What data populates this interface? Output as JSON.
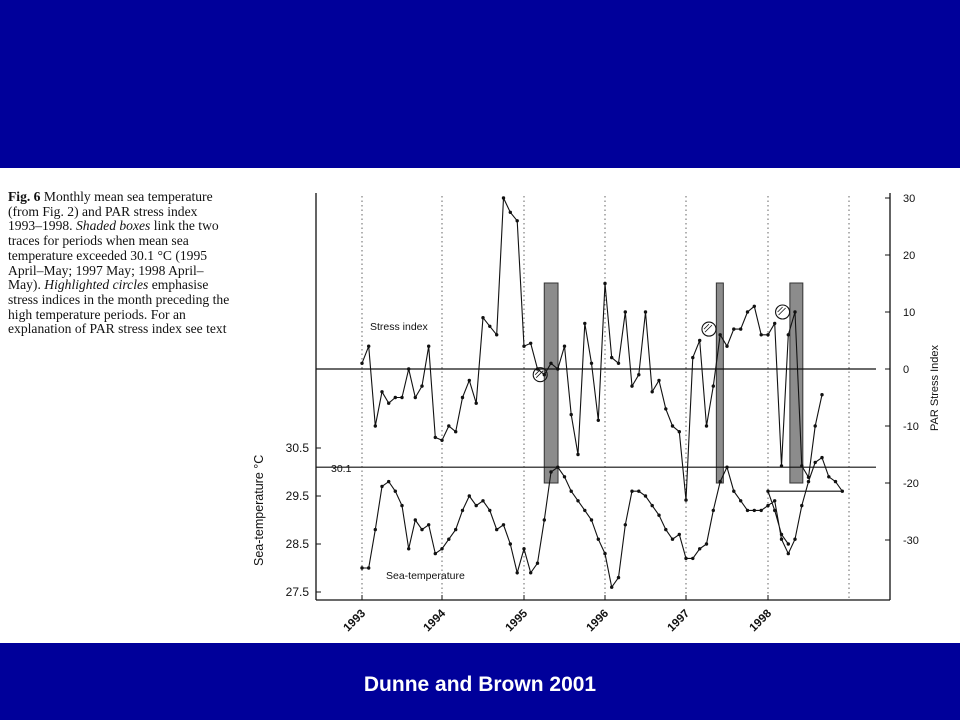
{
  "caption": {
    "fig_label": "Fig. 6",
    "part1": " Monthly mean sea temperature (from Fig. 2) and PAR stress index 1993–1998. ",
    "shaded_boxes": "Shaded boxes",
    "part2": " link the two traces for periods when mean sea temperature exceeded 30.1 °C (1995 April–May; 1997 May; 1998 April–May). ",
    "highlighted_circles": "Highlighted circles",
    "part3": " emphasise stress indices in the month preceding the high temperature periods. For an explanation of PAR stress index see text"
  },
  "credit": "Dunne and Brown 2001",
  "colors": {
    "band": "#00009a",
    "panel": "#ffffff",
    "ink": "#111111",
    "box_fill": "#8c8c8c"
  },
  "chart_data": {
    "type": "line",
    "x_tick_labels": [
      "1993",
      "1994",
      "1995",
      "1996",
      "1997",
      "1998"
    ],
    "left_axis": {
      "label": "Sea-temperature  °C",
      "ylim": [
        27.5,
        31.4
      ],
      "ticks": [
        27.5,
        28.5,
        29.5,
        30.5
      ],
      "tick_labels": [
        "27.5",
        "28.5",
        "29.5",
        "30.5"
      ]
    },
    "right_axis": {
      "label": "PAR Stress Index",
      "ylim": [
        -40,
        30
      ],
      "ticks": [
        -30,
        -20,
        -10,
        0,
        10,
        20,
        30
      ],
      "tick_labels": [
        "-30",
        "-20",
        "-10",
        "0",
        "10",
        "20",
        "30"
      ]
    },
    "threshold": {
      "value": 30.1,
      "label": "30.1"
    },
    "stress_zero_line": 0,
    "grid": "vertical dotted lines at year starts",
    "x_start_year": 1993,
    "series": [
      {
        "name": "Stress index",
        "axis": "right",
        "values": [
          1,
          4,
          -10,
          -4,
          -6,
          -5,
          -5,
          0,
          -5,
          -3,
          4,
          -12,
          -12.5,
          -10,
          -11,
          -5,
          -2,
          -6,
          9,
          7.5,
          6,
          30,
          27.5,
          26,
          4,
          4.5,
          0,
          -1,
          1,
          0,
          4,
          -8,
          -15,
          8,
          1,
          -9,
          15,
          2,
          1,
          10,
          -3,
          -1,
          10,
          -4,
          -2,
          -7,
          -10,
          -11,
          -23,
          2,
          5,
          -10,
          -3,
          6,
          4,
          7,
          7,
          10,
          11,
          6,
          6,
          8,
          -17,
          6,
          10,
          -17,
          -19,
          -10,
          -4.5
        ],
        "start_month_offset": 0
      },
      {
        "name": "Sea-temperature",
        "axis": "left",
        "values": [
          28.0,
          28.0,
          28.8,
          29.7,
          29.8,
          29.6,
          29.3,
          28.4,
          29.0,
          28.8,
          28.9,
          28.3,
          28.4,
          28.6,
          28.8,
          29.2,
          29.5,
          29.3,
          29.4,
          29.2,
          28.8,
          28.9,
          28.5,
          27.9,
          28.4,
          27.9,
          28.1,
          29.0,
          30.0,
          30.1,
          29.9,
          29.6,
          29.4,
          29.2,
          29.0,
          28.6,
          28.3,
          27.6,
          27.8,
          28.9,
          29.6,
          29.6,
          29.5,
          29.3,
          29.1,
          28.8,
          28.6,
          28.7,
          28.2,
          28.2,
          28.4,
          28.5,
          29.2,
          29.8,
          30.1,
          29.6,
          29.4,
          29.2,
          29.2,
          29.2,
          29.3,
          29.4,
          28.6,
          28.3,
          28.6,
          29.3,
          29.8,
          30.2,
          30.3,
          29.9,
          29.8,
          29.6,
          29.6,
          29.2,
          28.7,
          28.5
        ],
        "start_month_offset": 0
      }
    ],
    "shaded_boxes": [
      {
        "period": "1995 April–May",
        "start_year": 1995.25,
        "end_year": 1995.42
      },
      {
        "period": "1997 May",
        "start_year": 1997.37,
        "end_year": 1997.45
      },
      {
        "period": "1998 April–May",
        "start_year": 1998.27,
        "end_year": 1998.43
      }
    ],
    "highlighted_circles": [
      {
        "year": 1995.2,
        "stress": -1
      },
      {
        "year": 1997.28,
        "stress": 7
      },
      {
        "year": 1998.18,
        "stress": 10
      }
    ]
  }
}
